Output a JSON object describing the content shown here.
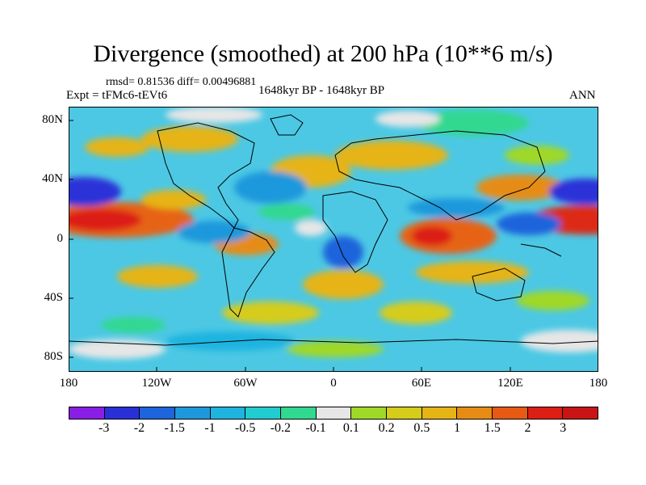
{
  "title": "Divergence (smoothed) at 200 hPa (10**6 m/s)",
  "stats": "rmsd= 0.81536 diff= 0.00496881",
  "experiment": "Expt = tFMc6-tEVt6",
  "period": "1648kyr BP - 1648kyr BP",
  "season": "ANN",
  "y_ticks": [
    "80N",
    "40N",
    "0",
    "40S",
    "80S"
  ],
  "x_ticks": [
    "180",
    "120W",
    "60W",
    "0",
    "60E",
    "120E",
    "180"
  ],
  "colorbar": {
    "labels": [
      "-3",
      "-2",
      "-1.5",
      "-1",
      "-0.5",
      "-0.2",
      "-0.1",
      "0.1",
      "0.2",
      "0.5",
      "1",
      "1.5",
      "2",
      "3"
    ],
    "colors": [
      "#8a1ee6",
      "#2a30d8",
      "#1e64dc",
      "#1e98dc",
      "#1eb4e0",
      "#20ccd0",
      "#30d890",
      "#e6e6e6",
      "#a0d828",
      "#d6cc1a",
      "#e6b414",
      "#e68c14",
      "#e65a14",
      "#dc1e14",
      "#c81414"
    ]
  }
}
